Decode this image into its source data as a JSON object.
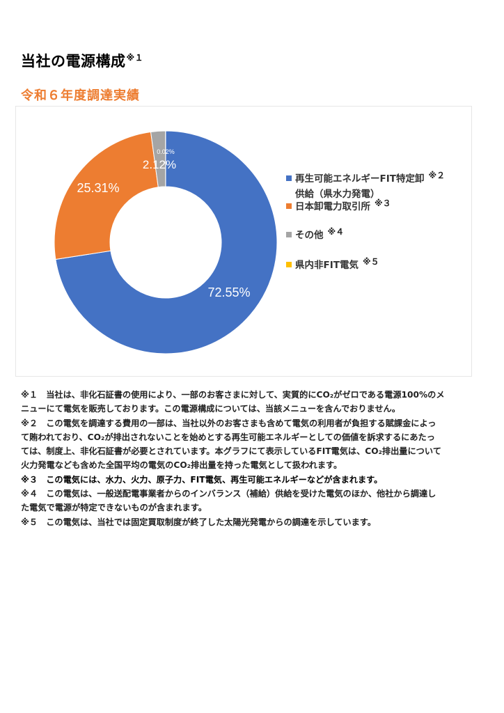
{
  "title": {
    "text": "当社の電源構成",
    "mark": "※１"
  },
  "subtitle": "令和６年度調達実績",
  "chart_data": {
    "type": "pie",
    "donut": true,
    "categories": [
      "再生可能エネルギーFIT特定卸供給（県水力発電）",
      "日本卸電力取引所",
      "その他",
      "県内非FIT電気"
    ],
    "values": [
      72.55,
      25.31,
      2.12,
      0.02
    ],
    "data_labels": [
      "72.55%",
      "25.31%",
      "2.12%",
      "0.02%"
    ],
    "colors": [
      "#4472C4",
      "#ED7D31",
      "#A5A5A5",
      "#FFC000"
    ],
    "legend_placement": "right",
    "start_angle": "top, clockwise"
  },
  "legend": [
    {
      "line1": "再生可能エネルギーFIT特定卸",
      "line2": "供給（県水力発電）",
      "mark": "※２"
    },
    {
      "line1": "日本卸電力取引所",
      "mark": "※３"
    },
    {
      "line1": "その他",
      "mark": "※４"
    },
    {
      "line1": "県内非FIT電気",
      "mark": "※５"
    }
  ],
  "notes": [
    {
      "lines": [
        "※１　当社は、非化石証書の使用により、一部のお客さまに対して、実質的にCO₂がゼロである電源100%のメ",
        "ニューにて電気を販売しております。この電源構成については、当該メニューを含んでおりません。"
      ]
    },
    {
      "lines": [
        "※２　この電気を調達する費用の一部は、当社以外のお客さまも含めて電気の利用者が負担する賦課金によっ",
        "て賄われており、CO₂が排出されないことを始めとする再生可能エネルギーとしての価値を訴求するにあたっ",
        "ては、制度上、非化石証書が必要とされています。本グラフにて表示しているFIT電気は、CO₂排出量について",
        "火力発電なども含めた全国平均の電気のCO₂排出量を持った電気として扱われます。"
      ]
    },
    {
      "lines": [
        "※３　この電気には、水力、火力、原子力、FIT電気、再生可能エネルギーなどが含まれます。"
      ]
    },
    {
      "lines": [
        "※４　この電気は、一般送配電事業者からのインバランス（補給）供給を受けた電気のほか、他社から調達し",
        "た電気で電源が特定できないものが含まれます。"
      ]
    },
    {
      "lines": [
        "※５　この電気は、当社では固定買取制度が終了した太陽光発電からの調達を示しています。"
      ]
    }
  ]
}
